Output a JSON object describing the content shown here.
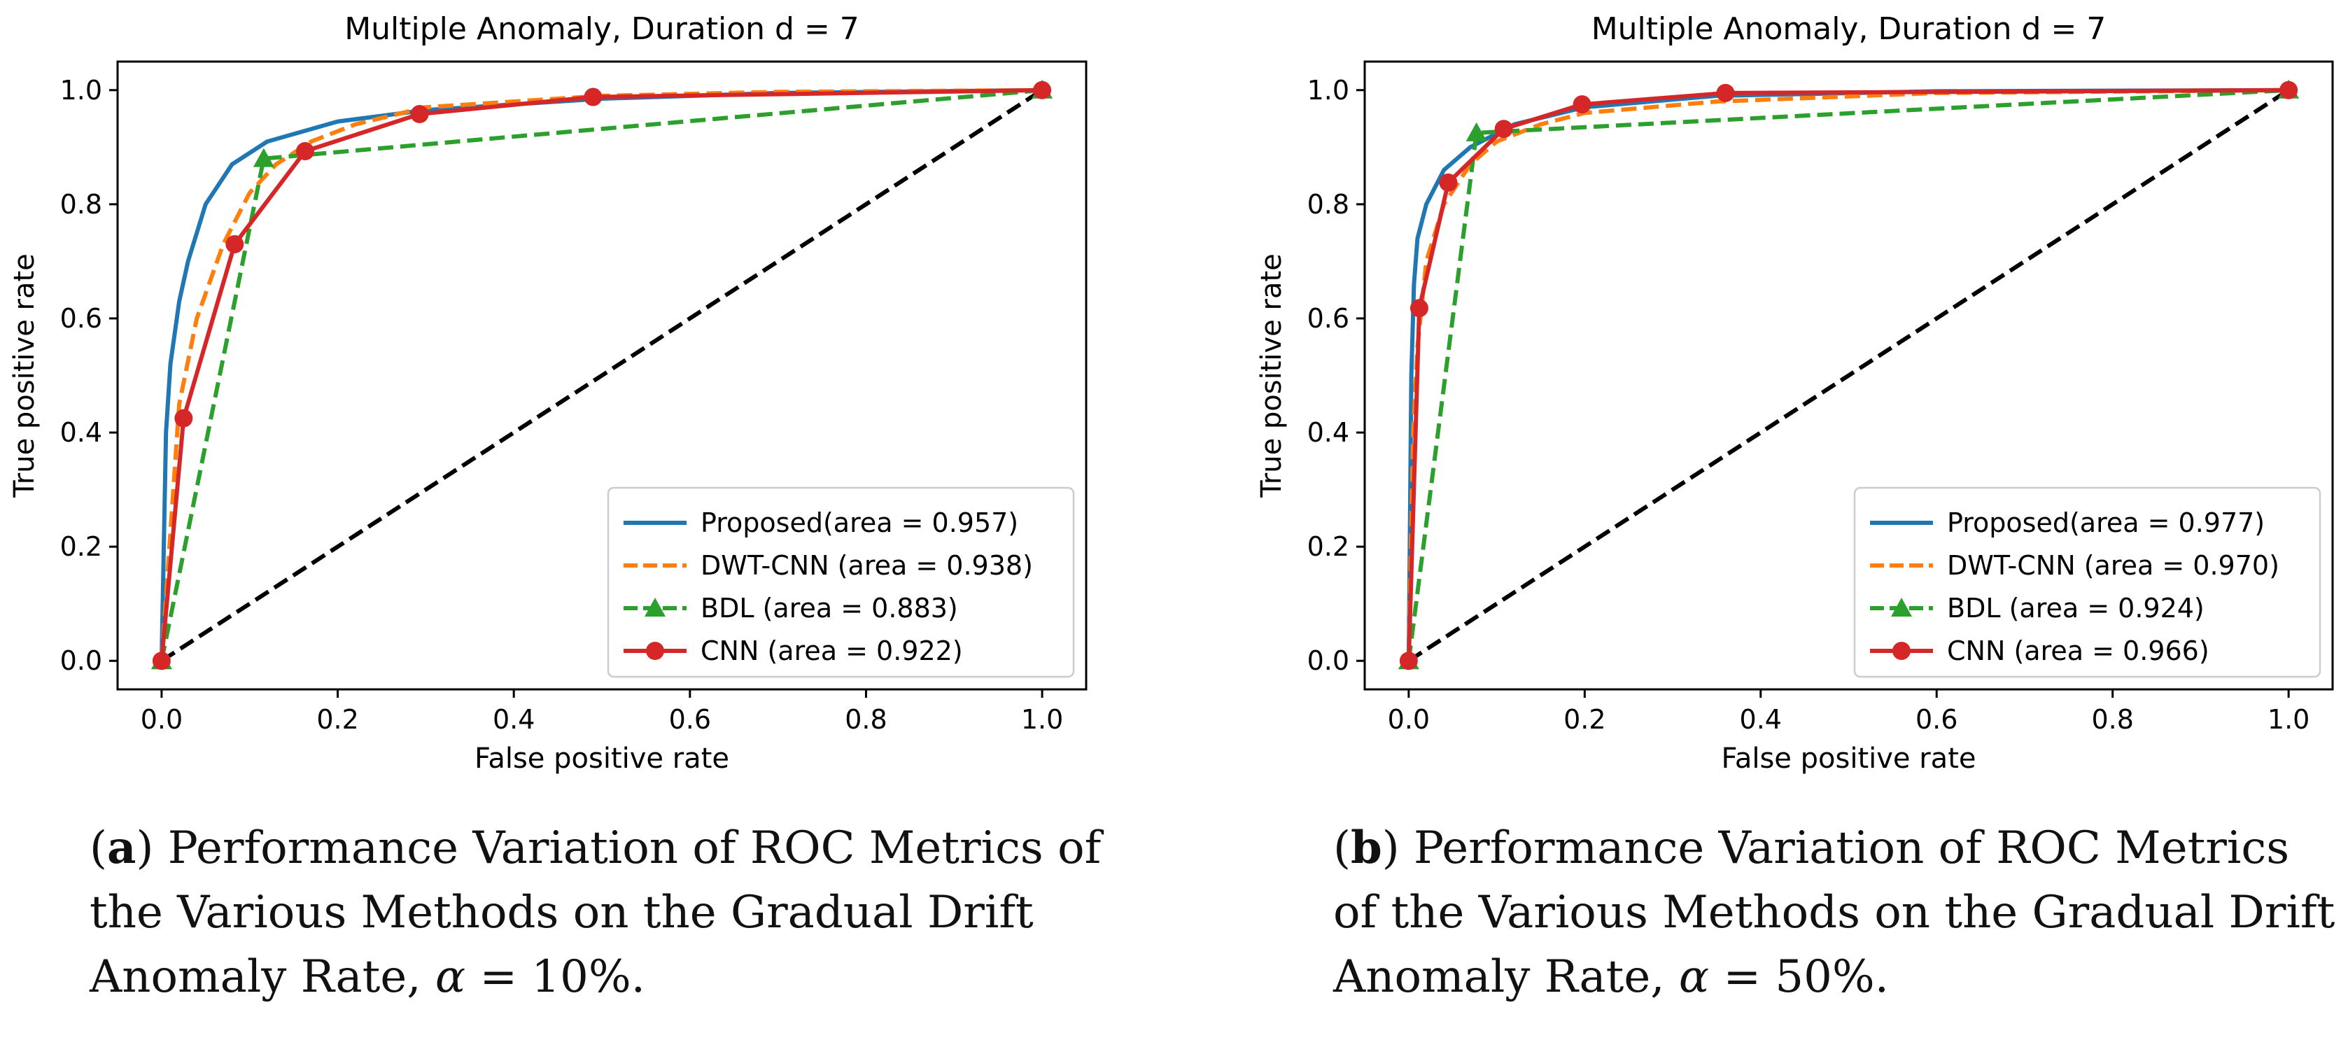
{
  "chart_data": [
    {
      "type": "line",
      "title": "Multiple Anomaly, Duration d = 7",
      "xlabel": "False positive rate",
      "ylabel": "True positive rate",
      "xlim": [
        -0.05,
        1.05
      ],
      "ylim": [
        -0.05,
        1.05
      ],
      "xticks": [
        "0.0",
        "0.2",
        "0.4",
        "0.6",
        "0.8",
        "1.0"
      ],
      "yticks": [
        "0.0",
        "0.2",
        "0.4",
        "0.6",
        "0.8",
        "1.0"
      ],
      "legend_position": "lower-right",
      "series": [
        {
          "name": "Proposed(area = 0.957)",
          "color": "#1f77b4",
          "style": "solid",
          "marker": "none",
          "x": [
            0,
            0.005,
            0.01,
            0.02,
            0.03,
            0.05,
            0.08,
            0.12,
            0.2,
            0.3,
            0.5,
            0.7,
            1.0
          ],
          "y": [
            0,
            0.4,
            0.52,
            0.63,
            0.7,
            0.8,
            0.87,
            0.91,
            0.945,
            0.965,
            0.985,
            0.995,
            1.0
          ]
        },
        {
          "name": "DWT-CNN (area = 0.938)",
          "color": "#ff7f0e",
          "style": "dashed",
          "marker": "none",
          "x": [
            0,
            0.02,
            0.04,
            0.07,
            0.1,
            0.13,
            0.17,
            0.22,
            0.3,
            0.5,
            0.7,
            1.0
          ],
          "y": [
            0,
            0.45,
            0.6,
            0.73,
            0.82,
            0.87,
            0.91,
            0.94,
            0.97,
            0.99,
            0.997,
            1.0
          ]
        },
        {
          "name": "BDL (area = 0.883)",
          "color": "#2ca02c",
          "style": "dashed",
          "marker": "triangle",
          "x": [
            0,
            0.116,
            1.0
          ],
          "y": [
            0,
            0.88,
            1.0
          ]
        },
        {
          "name": "CNN (area = 0.922)",
          "color": "#d62728",
          "style": "solid",
          "marker": "circle",
          "x": [
            0,
            0.025,
            0.083,
            0.163,
            0.293,
            0.49,
            1.0
          ],
          "y": [
            0,
            0.425,
            0.73,
            0.893,
            0.958,
            0.988,
            1.0
          ]
        },
        {
          "name": "chance",
          "color": "#000000",
          "style": "dashed",
          "marker": "none",
          "legend": false,
          "x": [
            0,
            1
          ],
          "y": [
            0,
            1
          ]
        }
      ]
    },
    {
      "type": "line",
      "title": "Multiple Anomaly, Duration d = 7",
      "xlabel": "False positive rate",
      "ylabel": "True positive rate",
      "xlim": [
        -0.05,
        1.05
      ],
      "ylim": [
        -0.05,
        1.05
      ],
      "xticks": [
        "0.0",
        "0.2",
        "0.4",
        "0.6",
        "0.8",
        "1.0"
      ],
      "yticks": [
        "0.0",
        "0.2",
        "0.4",
        "0.6",
        "0.8",
        "1.0"
      ],
      "legend_position": "lower-right",
      "series": [
        {
          "name": "Proposed(area = 0.977)",
          "color": "#1f77b4",
          "style": "solid",
          "marker": "none",
          "x": [
            0,
            0.003,
            0.006,
            0.01,
            0.02,
            0.04,
            0.07,
            0.12,
            0.2,
            0.35,
            0.6,
            1.0
          ],
          "y": [
            0,
            0.5,
            0.66,
            0.74,
            0.8,
            0.86,
            0.9,
            0.94,
            0.97,
            0.99,
            0.998,
            1.0
          ]
        },
        {
          "name": "DWT-CNN (area = 0.970)",
          "color": "#ff7f0e",
          "style": "dashed",
          "marker": "none",
          "x": [
            0,
            0.005,
            0.01,
            0.02,
            0.04,
            0.07,
            0.1,
            0.15,
            0.2,
            0.35,
            0.6,
            1.0
          ],
          "y": [
            0,
            0.4,
            0.55,
            0.7,
            0.8,
            0.87,
            0.91,
            0.94,
            0.96,
            0.98,
            0.995,
            1.0
          ]
        },
        {
          "name": "BDL (area = 0.924)",
          "color": "#2ca02c",
          "style": "dashed",
          "marker": "triangle",
          "x": [
            0,
            0.077,
            1.0
          ],
          "y": [
            0,
            0.925,
            1.0
          ]
        },
        {
          "name": "CNN (area = 0.966)",
          "color": "#d62728",
          "style": "solid",
          "marker": "circle",
          "x": [
            0,
            0.012,
            0.045,
            0.108,
            0.197,
            0.36,
            1.0
          ],
          "y": [
            0,
            0.618,
            0.838,
            0.932,
            0.975,
            0.995,
            1.0
          ]
        },
        {
          "name": "chance",
          "color": "#000000",
          "style": "dashed",
          "marker": "none",
          "legend": false,
          "x": [
            0,
            1
          ],
          "y": [
            0,
            1
          ]
        }
      ]
    }
  ],
  "captions": [
    {
      "label": "a",
      "line1_text": " Performance Variation of ROC Metrics of",
      "line2": "the Various Methods on the Gradual Drift",
      "line3_pre": "Anomaly Rate, ",
      "alpha": "α",
      "line3_post": " = 10%."
    },
    {
      "label": "b",
      "line1_text": " Performance Variation of ROC Metrics",
      "line2": "of the Various Methods on the Gradual Drift",
      "line3_pre": "Anomaly Rate, ",
      "alpha": "α",
      "line3_post": " = 50%."
    }
  ]
}
